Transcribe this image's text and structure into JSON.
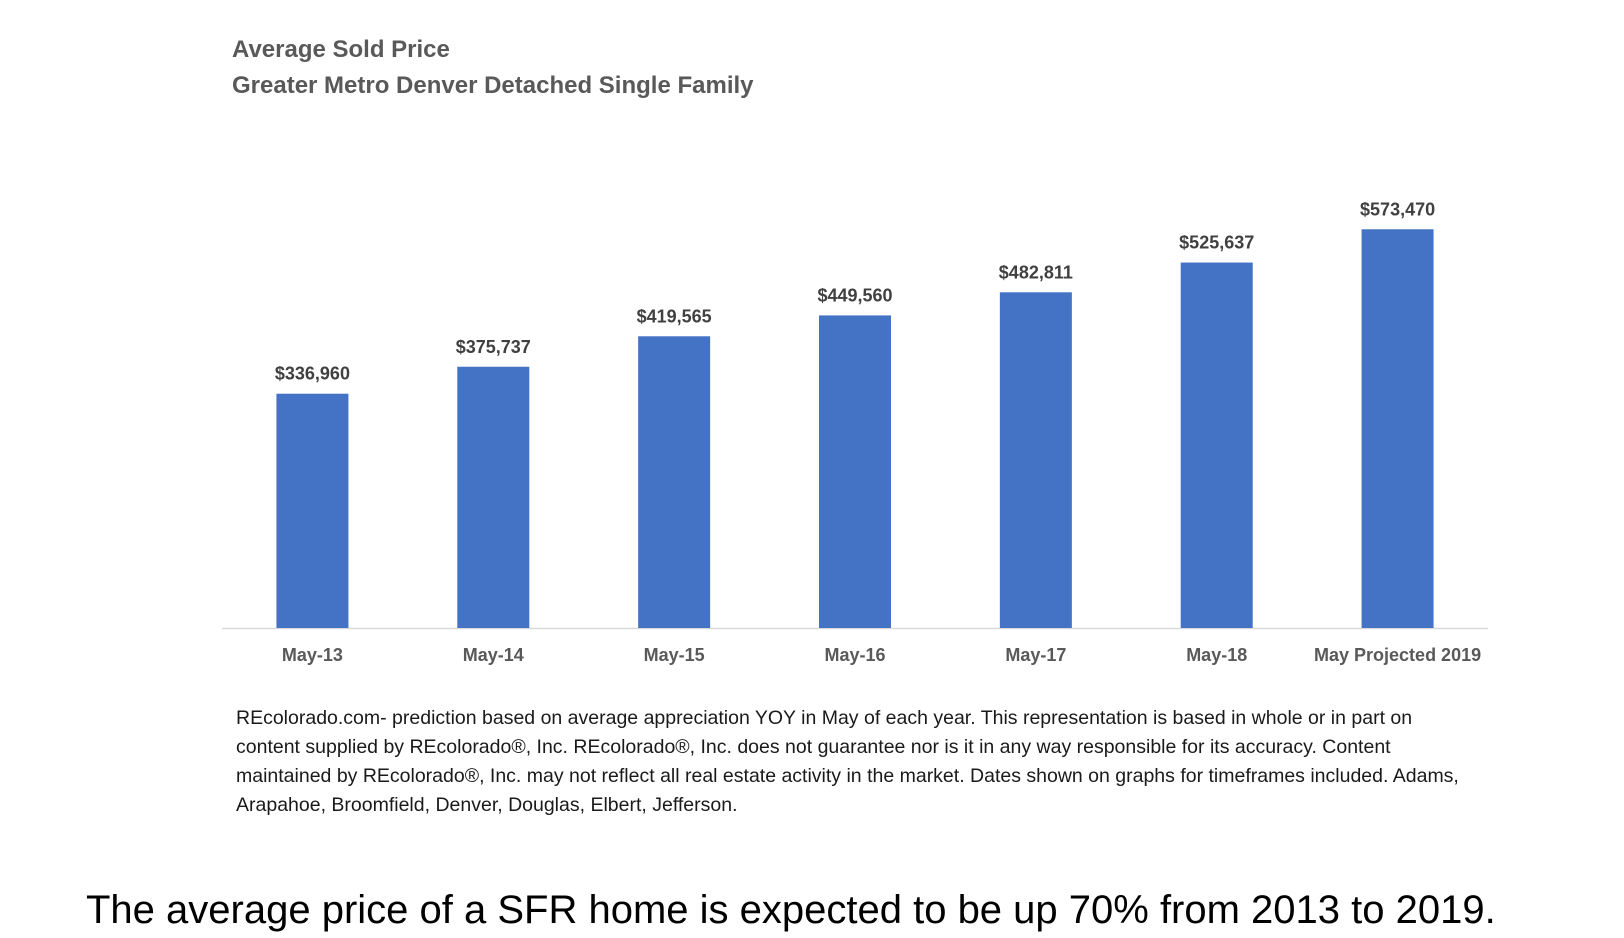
{
  "chart_data": {
    "type": "bar",
    "title": "Average Sold Price",
    "subtitle": "Greater Metro Denver Detached Single Family",
    "categories": [
      "May-13",
      "May-14",
      "May-15",
      "May-16",
      "May-17",
      "May-18",
      "May Projected 2019"
    ],
    "values": [
      336960,
      375737,
      419565,
      449560,
      482811,
      525637,
      573470
    ],
    "data_labels": [
      "$336,960",
      "$375,737",
      "$419,565",
      "$449,560",
      "$482,811",
      "$525,637",
      "$573,470"
    ],
    "xlabel": "",
    "ylabel": "",
    "ylim": [
      0,
      600000
    ],
    "grid": false,
    "legend": "none",
    "bar_color": "#4472C4"
  },
  "footnote": "REcolorado.com- prediction based on average appreciation YOY in May of each year. This representation is based in whole or in part on content supplied by REcolorado®, Inc. REcolorado®, Inc. does not guarantee nor is it in any way responsible for its accuracy. Content maintained by REcolorado®, Inc. may not reflect all real estate activity in the market. Dates shown on graphs for timeframes included.  Adams, Arapahoe, Broomfield, Denver, Douglas, Elbert, Jefferson.",
  "caption": "The average price of a SFR home is expected to be up 70% from 2013 to 2019."
}
